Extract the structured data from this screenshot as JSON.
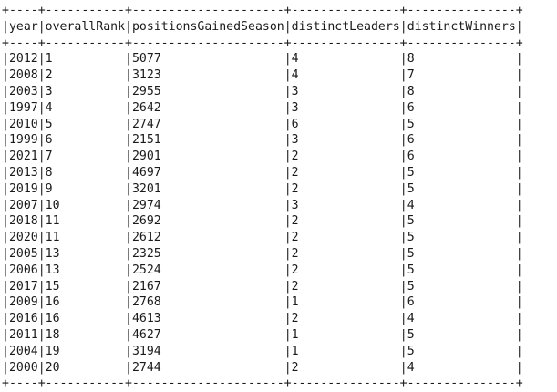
{
  "table": {
    "columns": [
      "year",
      "overallRank",
      "positionsGainedSeason",
      "distinctLeaders",
      "distinctWinners"
    ],
    "rows": [
      [
        "2012",
        "1",
        "5077",
        "4",
        "8"
      ],
      [
        "2008",
        "2",
        "3123",
        "4",
        "7"
      ],
      [
        "2003",
        "3",
        "2955",
        "3",
        "8"
      ],
      [
        "1997",
        "4",
        "2642",
        "3",
        "6"
      ],
      [
        "2010",
        "5",
        "2747",
        "6",
        "5"
      ],
      [
        "1999",
        "6",
        "2151",
        "3",
        "6"
      ],
      [
        "2021",
        "7",
        "2901",
        "2",
        "6"
      ],
      [
        "2013",
        "8",
        "4697",
        "2",
        "5"
      ],
      [
        "2019",
        "9",
        "3201",
        "2",
        "5"
      ],
      [
        "2007",
        "10",
        "2974",
        "3",
        "4"
      ],
      [
        "2018",
        "11",
        "2692",
        "2",
        "5"
      ],
      [
        "2020",
        "11",
        "2612",
        "2",
        "5"
      ],
      [
        "2005",
        "13",
        "2325",
        "2",
        "5"
      ],
      [
        "2006",
        "13",
        "2524",
        "2",
        "5"
      ],
      [
        "2017",
        "15",
        "2167",
        "2",
        "5"
      ],
      [
        "2009",
        "16",
        "2768",
        "1",
        "6"
      ],
      [
        "2016",
        "16",
        "4613",
        "2",
        "4"
      ],
      [
        "2011",
        "18",
        "4627",
        "1",
        "5"
      ],
      [
        "2004",
        "19",
        "3194",
        "1",
        "5"
      ],
      [
        "2000",
        "20",
        "2744",
        "2",
        "4"
      ]
    ]
  }
}
